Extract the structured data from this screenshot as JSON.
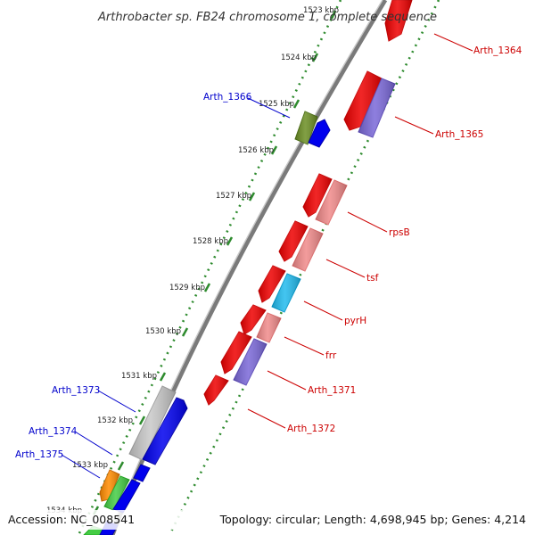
{
  "title": "Arthrobacter sp. FB24 chromosome 1, complete sequence",
  "footer": {
    "accession": "Accession: NC_008541",
    "topology": "Topology: circular; Length: 4,698,945 bp; Genes: 4,214"
  },
  "colors": {
    "backbone": "#8a8a8a",
    "tick_dots": "#2e8b2e",
    "label_red": "#cc0000",
    "label_blue": "#0000cc",
    "gene_red": "#ee0000",
    "gene_pink": "#f08a8a",
    "gene_purple": "#7a68d8",
    "gene_blue": "#0000ee",
    "gene_olive": "#6b8e23",
    "gene_cyan": "#22bbee",
    "gene_gray": "#c8c8c8",
    "gene_orange": "#ff8c00",
    "gene_green": "#44cc44"
  },
  "kbp_ticks": [
    "1523 kbp",
    "1524 kbp",
    "1525 kbp",
    "1526 kbp",
    "1527 kbp",
    "1528 kbp",
    "1529 kbp",
    "1530 kbp",
    "1531 kbp",
    "1532 kbp",
    "1533 kbp",
    "1534 kbp"
  ],
  "gene_labels": {
    "arth_1364": "Arth_1364",
    "arth_1365": "Arth_1365",
    "arth_1366": "Arth_1366",
    "rpsB": "rpsB",
    "tsf": "tsf",
    "pyrH": "pyrH",
    "frr": "frr",
    "arth_1371": "Arth_1371",
    "arth_1372": "Arth_1372",
    "arth_1373": "Arth_1373",
    "arth_1374": "Arth_1374",
    "arth_1375": "Arth_1375"
  }
}
